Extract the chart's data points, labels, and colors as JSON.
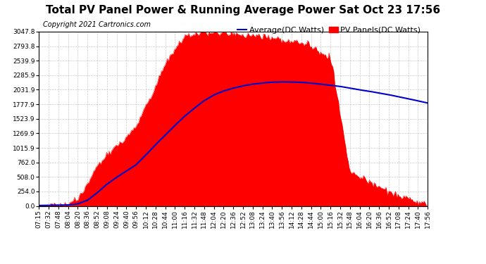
{
  "title": "Total PV Panel Power & Running Average Power Sat Oct 23 17:56",
  "copyright": "Copyright 2021 Cartronics.com",
  "legend_avg": "Average(DC Watts)",
  "legend_pv": "PV Panels(DC Watts)",
  "background_color": "#ffffff",
  "plot_bg_color": "#ffffff",
  "grid_color": "#bbbbbb",
  "pv_color": "#ff0000",
  "avg_color": "#0000cc",
  "ylim": [
    0,
    3047.8
  ],
  "yticks": [
    0.0,
    254.0,
    508.0,
    762.0,
    1015.9,
    1269.9,
    1523.9,
    1777.9,
    2031.9,
    2285.9,
    2539.9,
    2793.8,
    3047.8
  ],
  "time_points": [
    "07:15",
    "07:32",
    "07:48",
    "08:04",
    "08:20",
    "08:36",
    "08:52",
    "09:08",
    "09:24",
    "09:40",
    "09:56",
    "10:12",
    "10:28",
    "10:44",
    "11:00",
    "11:16",
    "11:32",
    "11:48",
    "12:04",
    "12:20",
    "12:36",
    "12:52",
    "13:08",
    "13:24",
    "13:40",
    "13:56",
    "14:12",
    "14:28",
    "14:44",
    "15:00",
    "15:16",
    "15:32",
    "15:48",
    "16:04",
    "16:20",
    "16:36",
    "16:52",
    "17:08",
    "17:24",
    "17:40",
    "17:56"
  ],
  "pv_values": [
    8,
    15,
    20,
    30,
    120,
    380,
    700,
    900,
    1050,
    1200,
    1400,
    1750,
    2100,
    2500,
    2750,
    2950,
    3020,
    3040,
    3040,
    3030,
    3010,
    2990,
    2970,
    2960,
    2940,
    2910,
    2880,
    2850,
    2800,
    2700,
    2600,
    1600,
    600,
    500,
    420,
    340,
    260,
    180,
    110,
    60,
    15
  ],
  "avg_values": [
    8,
    10,
    13,
    16,
    35,
    100,
    230,
    380,
    500,
    610,
    720,
    890,
    1070,
    1240,
    1410,
    1570,
    1710,
    1840,
    1940,
    2010,
    2060,
    2100,
    2130,
    2150,
    2165,
    2170,
    2168,
    2162,
    2148,
    2130,
    2110,
    2090,
    2060,
    2030,
    2005,
    1975,
    1945,
    1910,
    1875,
    1838,
    1800
  ],
  "title_fontsize": 11,
  "copyright_fontsize": 7,
  "tick_fontsize": 6.5,
  "legend_fontsize": 8
}
